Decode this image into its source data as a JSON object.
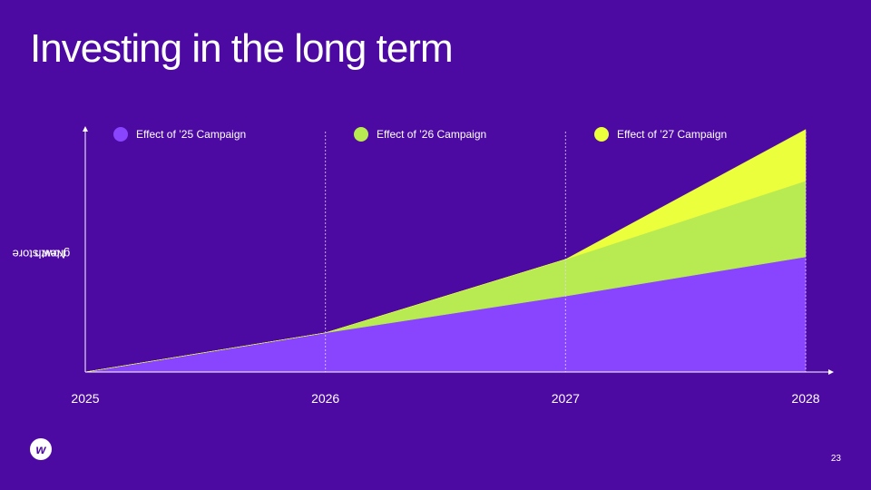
{
  "slide": {
    "title": "Investing in the long term",
    "page_number": "23",
    "logo_icon": "brand-logo-w"
  },
  "chart_data": {
    "type": "area",
    "stacked": true,
    "x": [
      2025,
      2026,
      2027,
      2028
    ],
    "x_tick_labels": [
      "2025",
      "2026",
      "2027",
      "2028"
    ],
    "ylabel": "New store growth",
    "ylabel_lines": [
      "New store",
      "growth"
    ],
    "ylim": [
      0,
      100
    ],
    "y_ticks_shown": false,
    "series": [
      {
        "name": "Effect of ’25 Campaign",
        "color": "#8945fe",
        "values": [
          0,
          16,
          31,
          47
        ]
      },
      {
        "name": "Effect of ’26 Campaign",
        "color": "#b8ea52",
        "values": [
          0,
          0,
          15,
          31
        ]
      },
      {
        "name": "Effect of ’27 Campaign",
        "color": "#ebff3d",
        "values": [
          0,
          0,
          0,
          21
        ]
      }
    ],
    "vertical_dotted_gridlines_at": [
      2026,
      2027,
      2028
    ],
    "legend_position": "top"
  }
}
